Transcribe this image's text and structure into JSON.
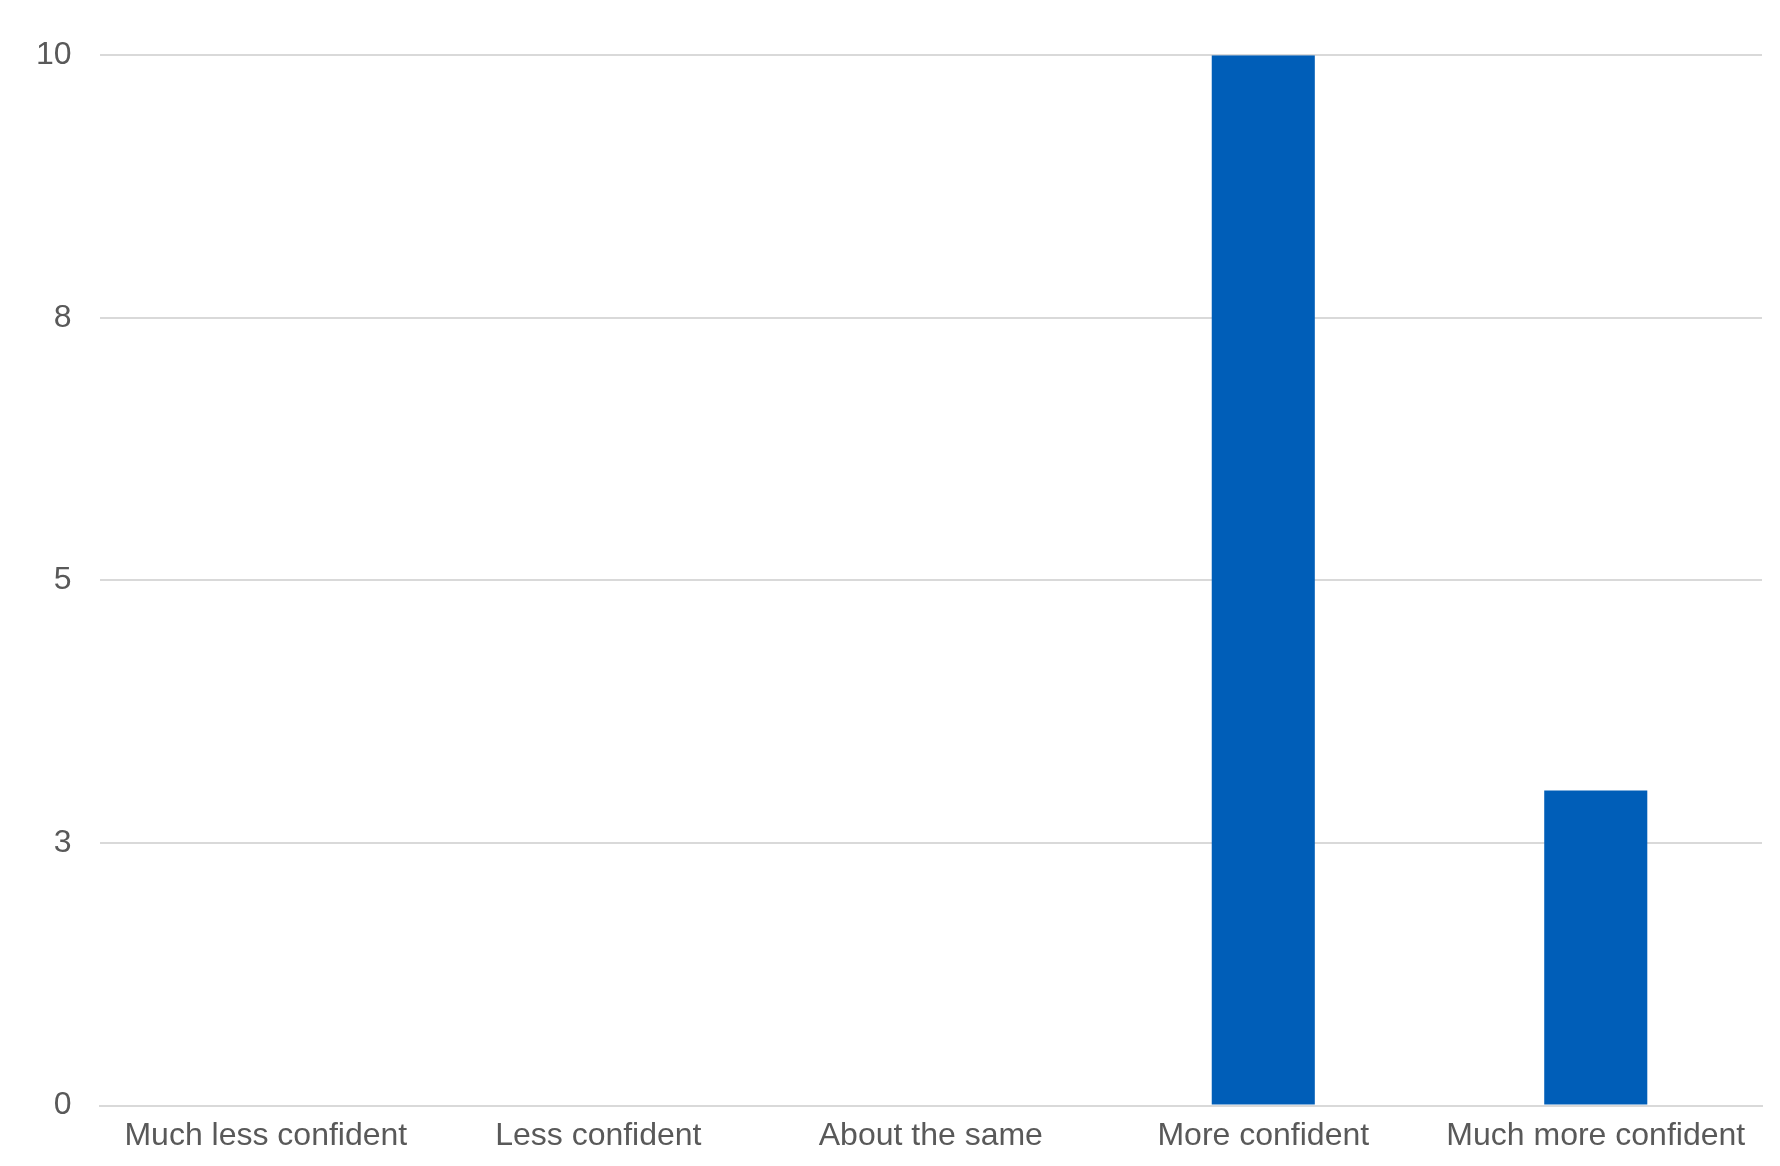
{
  "chart_data": {
    "type": "bar",
    "categories": [
      "Much less confident",
      "Less confident",
      "About the same",
      "More confident",
      "Much more confident"
    ],
    "values": [
      0,
      0,
      0,
      10,
      3
    ],
    "color": "#005eb8",
    "ylim": [
      0,
      10
    ],
    "yticks": [
      0,
      {
        "value": 2.5,
        "label": "3"
      },
      5,
      {
        "value": 7.5,
        "label": "8"
      },
      10
    ],
    "grid": "y",
    "legend": false
  }
}
